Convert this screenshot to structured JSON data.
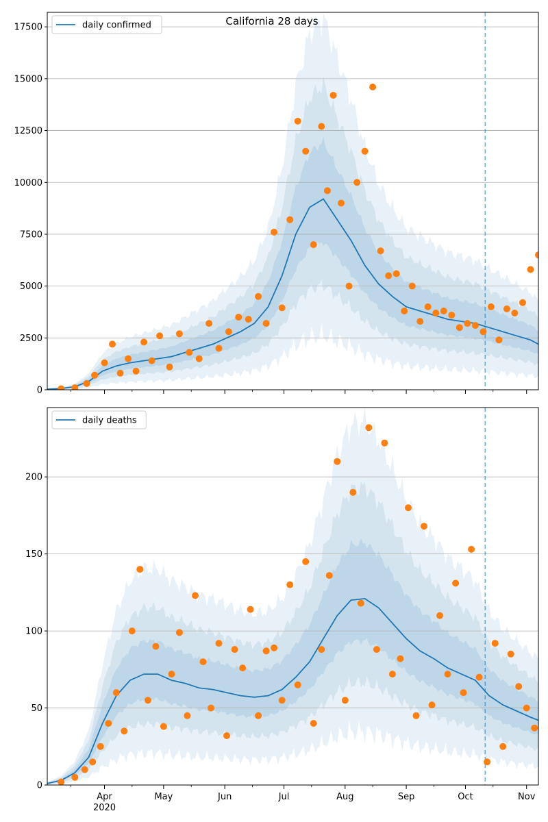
{
  "figure": {
    "title": "California 28 days",
    "x_axis": {
      "start": "2020-03-03",
      "end": "2020-11-07",
      "month_ticks": [
        {
          "date": "2020-04-01",
          "label": "Apr",
          "sublabel": "2020"
        },
        {
          "date": "2020-05-01",
          "label": "May",
          "sublabel": ""
        },
        {
          "date": "2020-06-01",
          "label": "Jun",
          "sublabel": ""
        },
        {
          "date": "2020-07-01",
          "label": "Jul",
          "sublabel": ""
        },
        {
          "date": "2020-08-01",
          "label": "Aug",
          "sublabel": ""
        },
        {
          "date": "2020-09-01",
          "label": "Sep",
          "sublabel": ""
        },
        {
          "date": "2020-10-01",
          "label": "Oct",
          "sublabel": ""
        },
        {
          "date": "2020-11-01",
          "label": "Nov",
          "sublabel": ""
        }
      ],
      "minor_tick_dates": [
        "2020-03-15",
        "2020-04-15",
        "2020-05-15",
        "2020-06-15",
        "2020-07-15",
        "2020-08-15",
        "2020-09-15",
        "2020-10-15"
      ]
    },
    "forecast_start": "2020-10-11"
  },
  "colors": {
    "median_line": "#1f77b4",
    "observed_points": "#ff7f0e",
    "band": "#1f77b4",
    "grid": "#b0b0b0",
    "forecast_line": "#1f77b4"
  },
  "chart_data": [
    {
      "type": "line",
      "legend": "daily confirmed",
      "legend_position": "top-left",
      "grid": "horizontal",
      "ylim": [
        0,
        18200
      ],
      "yticks": [
        0,
        2500,
        5000,
        7500,
        10000,
        12500,
        15000,
        17500
      ],
      "series": [
        {
          "name": "daily confirmed",
          "kind": "median",
          "dates": [
            "2020-03-03",
            "2020-03-10",
            "2020-03-17",
            "2020-03-24",
            "2020-03-31",
            "2020-04-07",
            "2020-04-14",
            "2020-04-21",
            "2020-04-28",
            "2020-05-05",
            "2020-05-12",
            "2020-05-19",
            "2020-05-26",
            "2020-06-02",
            "2020-06-09",
            "2020-06-16",
            "2020-06-23",
            "2020-06-30",
            "2020-07-07",
            "2020-07-14",
            "2020-07-21",
            "2020-07-28",
            "2020-08-04",
            "2020-08-11",
            "2020-08-18",
            "2020-08-25",
            "2020-09-01",
            "2020-09-08",
            "2020-09-15",
            "2020-09-22",
            "2020-09-29",
            "2020-10-06",
            "2020-10-13",
            "2020-10-20",
            "2020-10-27",
            "2020-11-03",
            "2020-11-07"
          ],
          "values": [
            30,
            60,
            150,
            400,
            900,
            1150,
            1300,
            1400,
            1500,
            1600,
            1800,
            2000,
            2200,
            2500,
            2800,
            3200,
            4000,
            5500,
            7500,
            8800,
            9200,
            8200,
            7200,
            6000,
            5100,
            4500,
            4000,
            3800,
            3600,
            3400,
            3300,
            3200,
            3000,
            2800,
            2600,
            2400,
            2200
          ]
        },
        {
          "name": "",
          "kind": "observed",
          "dates": [
            "2020-03-10",
            "2020-03-17",
            "2020-03-23",
            "2020-03-27",
            "2020-04-01",
            "2020-04-05",
            "2020-04-09",
            "2020-04-13",
            "2020-04-17",
            "2020-04-21",
            "2020-04-25",
            "2020-04-29",
            "2020-05-04",
            "2020-05-09",
            "2020-05-14",
            "2020-05-19",
            "2020-05-24",
            "2020-05-29",
            "2020-06-03",
            "2020-06-08",
            "2020-06-13",
            "2020-06-18",
            "2020-06-22",
            "2020-06-26",
            "2020-06-30",
            "2020-07-04",
            "2020-07-08",
            "2020-07-12",
            "2020-07-16",
            "2020-07-20",
            "2020-07-23",
            "2020-07-26",
            "2020-07-30",
            "2020-08-03",
            "2020-08-07",
            "2020-08-11",
            "2020-08-15",
            "2020-08-19",
            "2020-08-23",
            "2020-08-27",
            "2020-08-31",
            "2020-09-04",
            "2020-09-08",
            "2020-09-12",
            "2020-09-16",
            "2020-09-20",
            "2020-09-24",
            "2020-09-28",
            "2020-10-02",
            "2020-10-06",
            "2020-10-10",
            "2020-10-14",
            "2020-10-18",
            "2020-10-22",
            "2020-10-26",
            "2020-10-30",
            "2020-11-03",
            "2020-11-07"
          ],
          "values": [
            50,
            100,
            300,
            700,
            1300,
            2200,
            800,
            1500,
            900,
            2300,
            1400,
            2600,
            1100,
            2700,
            1800,
            1500,
            3200,
            2000,
            2800,
            3500,
            3400,
            4500,
            3200,
            7600,
            3950,
            8200,
            12950,
            11500,
            7000,
            12700,
            9600,
            14200,
            9000,
            5000,
            10000,
            11500,
            14600,
            6700,
            5500,
            5600,
            3800,
            5000,
            3300,
            4000,
            3700,
            3800,
            3600,
            3000,
            3200,
            3100,
            2800,
            4000,
            2400,
            3900,
            3700,
            4200,
            5800,
            6500
          ]
        }
      ]
    },
    {
      "type": "line",
      "legend": "daily deaths",
      "legend_position": "top-left",
      "grid": "horizontal",
      "ylim": [
        0,
        245
      ],
      "yticks": [
        0,
        50,
        100,
        150,
        200
      ],
      "series": [
        {
          "name": "daily deaths",
          "kind": "median",
          "dates": [
            "2020-03-03",
            "2020-03-10",
            "2020-03-17",
            "2020-03-24",
            "2020-03-31",
            "2020-04-07",
            "2020-04-14",
            "2020-04-21",
            "2020-04-28",
            "2020-05-05",
            "2020-05-12",
            "2020-05-19",
            "2020-05-26",
            "2020-06-02",
            "2020-06-09",
            "2020-06-16",
            "2020-06-23",
            "2020-06-30",
            "2020-07-07",
            "2020-07-14",
            "2020-07-21",
            "2020-07-28",
            "2020-08-04",
            "2020-08-11",
            "2020-08-18",
            "2020-08-25",
            "2020-09-01",
            "2020-09-08",
            "2020-09-15",
            "2020-09-22",
            "2020-09-29",
            "2020-10-06",
            "2020-10-13",
            "2020-10-20",
            "2020-10-27",
            "2020-11-03",
            "2020-11-07"
          ],
          "values": [
            1,
            3,
            8,
            18,
            40,
            58,
            68,
            72,
            72,
            68,
            66,
            63,
            62,
            60,
            58,
            57,
            58,
            62,
            70,
            80,
            95,
            110,
            120,
            121,
            115,
            105,
            95,
            87,
            82,
            76,
            72,
            68,
            58,
            52,
            48,
            44,
            42
          ]
        },
        {
          "name": "",
          "kind": "observed",
          "dates": [
            "2020-03-10",
            "2020-03-17",
            "2020-03-22",
            "2020-03-26",
            "2020-03-30",
            "2020-04-03",
            "2020-04-07",
            "2020-04-11",
            "2020-04-15",
            "2020-04-19",
            "2020-04-23",
            "2020-04-27",
            "2020-05-01",
            "2020-05-05",
            "2020-05-09",
            "2020-05-13",
            "2020-05-17",
            "2020-05-21",
            "2020-05-25",
            "2020-05-29",
            "2020-06-02",
            "2020-06-06",
            "2020-06-10",
            "2020-06-14",
            "2020-06-18",
            "2020-06-22",
            "2020-06-26",
            "2020-06-30",
            "2020-07-04",
            "2020-07-08",
            "2020-07-12",
            "2020-07-16",
            "2020-07-20",
            "2020-07-24",
            "2020-07-28",
            "2020-08-01",
            "2020-08-05",
            "2020-08-09",
            "2020-08-13",
            "2020-08-17",
            "2020-08-21",
            "2020-08-25",
            "2020-08-29",
            "2020-09-02",
            "2020-09-06",
            "2020-09-10",
            "2020-09-14",
            "2020-09-18",
            "2020-09-22",
            "2020-09-26",
            "2020-09-30",
            "2020-10-04",
            "2020-10-08",
            "2020-10-12",
            "2020-10-16",
            "2020-10-20",
            "2020-10-24",
            "2020-10-28",
            "2020-11-01",
            "2020-11-05"
          ],
          "values": [
            2,
            5,
            10,
            15,
            25,
            40,
            60,
            35,
            100,
            140,
            55,
            90,
            38,
            72,
            99,
            45,
            123,
            80,
            50,
            92,
            32,
            88,
            76,
            114,
            45,
            87,
            89,
            55,
            130,
            65,
            145,
            40,
            88,
            136,
            210,
            55,
            190,
            118,
            232,
            88,
            222,
            72,
            82,
            180,
            45,
            168,
            52,
            110,
            72,
            131,
            60,
            153,
            70,
            15,
            92,
            25,
            85,
            64,
            50,
            37
          ]
        }
      ]
    }
  ]
}
